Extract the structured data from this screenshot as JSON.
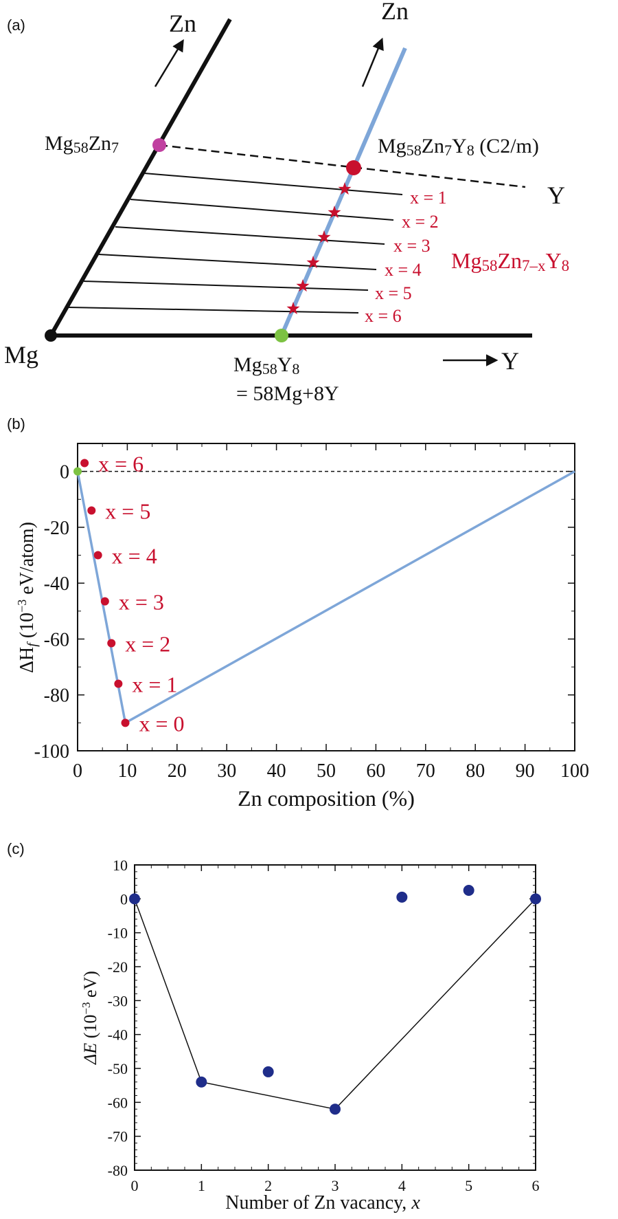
{
  "colors": {
    "red": "#c8102e",
    "blue_line": "#7ea6d8",
    "green": "#7cc242",
    "magenta": "#c040a0",
    "navy": "#1f2d8a",
    "black": "#111111"
  },
  "panel_a": {
    "label": "(a)",
    "zn_left": "Zn",
    "zn_right": "Zn",
    "mg": "Mg",
    "y_right": "Y",
    "y_arrow": "Y",
    "mg58zn7": {
      "a": "Mg",
      "b": "58",
      "c": "Zn",
      "d": "7"
    },
    "c2m": {
      "a": "Mg",
      "b": "58",
      "c": "Zn",
      "d": "7",
      "e": "Y",
      "f": "8",
      "g": " (C2/m)"
    },
    "family": {
      "a": "Mg",
      "b": "58",
      "c": "Zn",
      "d": "7–x",
      "e": "Y",
      "f": "8"
    },
    "mg58y8": {
      "a": "Mg",
      "b": "58",
      "c": "Y",
      "d": "8"
    },
    "eq": "= 58Mg+8Y",
    "x_labels": [
      "x = 1",
      "x = 2",
      "x = 3",
      "x = 4",
      "x = 5",
      "x = 6"
    ]
  },
  "panel_b": {
    "label": "(b)",
    "ylabel": {
      "a": "ΔH",
      "b": "f",
      "c": " (10",
      "d": "−3",
      "e": " eV/atom)"
    },
    "xlabel": "Zn composition (%)",
    "x_ticks": [
      "0",
      "10",
      "20",
      "30",
      "40",
      "50",
      "60",
      "70",
      "80",
      "90",
      "100"
    ],
    "y_ticks": [
      "0",
      "-20",
      "-40",
      "-60",
      "-80",
      "-100"
    ],
    "point_labels": [
      "x = 0",
      "x = 1",
      "x = 2",
      "x = 3",
      "x = 4",
      "x = 5",
      "x = 6"
    ]
  },
  "panel_c": {
    "label": "(c)",
    "ylabel": {
      "a": "ΔE",
      "b": "  (10",
      "c": "−3",
      "d": " eV)"
    },
    "xlabel": {
      "a": "Number of Zn vacancy, ",
      "b": "x"
    },
    "x_ticks": [
      "0",
      "1",
      "2",
      "3",
      "4",
      "5",
      "6"
    ],
    "y_ticks": [
      "10",
      "0",
      "-10",
      "-20",
      "-30",
      "-40",
      "-50",
      "-60",
      "-70",
      "-80"
    ]
  },
  "chart_data": [
    {
      "type": "line",
      "panel": "(b)",
      "xlabel": "Zn composition (%)",
      "ylabel": "ΔHf (10−3 eV/atom)",
      "xlim": [
        0,
        100
      ],
      "ylim": [
        -100,
        10
      ],
      "reference_line_y": 0,
      "points": [
        {
          "label": "x = 0",
          "x": 9.6,
          "y": -90
        },
        {
          "label": "x = 1",
          "x": 8.2,
          "y": -76
        },
        {
          "label": "x = 2",
          "x": 6.8,
          "y": -61.5
        },
        {
          "label": "x = 3",
          "x": 5.5,
          "y": -46.5
        },
        {
          "label": "x = 4",
          "x": 4.1,
          "y": -30
        },
        {
          "label": "x = 5",
          "x": 2.8,
          "y": -14
        },
        {
          "label": "x = 6",
          "x": 1.4,
          "y": 3
        }
      ],
      "hull": {
        "x": [
          0,
          9.6,
          100
        ],
        "y": [
          0,
          -90,
          0
        ]
      },
      "endpoint": {
        "x": 0,
        "y": 0
      }
    },
    {
      "type": "scatter",
      "panel": "(c)",
      "xlabel": "Number of Zn vacancy, x",
      "ylabel": "ΔE (10−3 eV)",
      "xlim": [
        0,
        6
      ],
      "ylim": [
        -80,
        10
      ],
      "x": [
        0,
        1,
        2,
        3,
        4,
        5,
        6
      ],
      "y": [
        0,
        -54,
        -51,
        -62,
        0.5,
        2.5,
        0
      ],
      "hull": {
        "x": [
          0,
          1,
          3,
          6
        ],
        "y": [
          0,
          -54,
          -62,
          0
        ]
      }
    }
  ]
}
